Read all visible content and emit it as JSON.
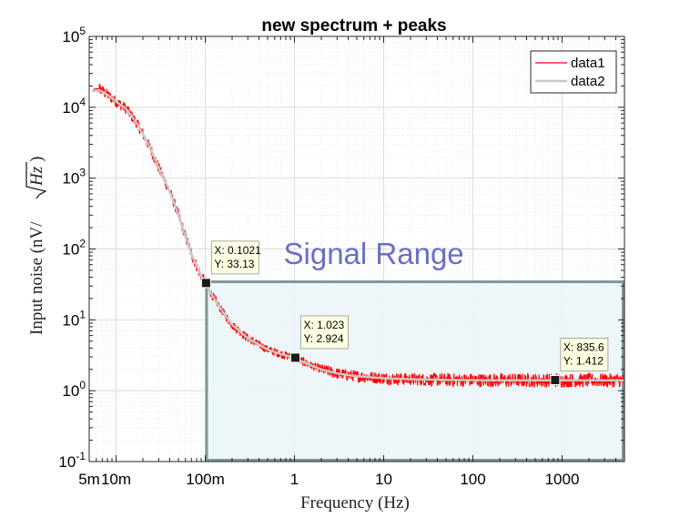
{
  "chart_data": {
    "type": "line",
    "title": "new spectrum + peaks",
    "xlabel": "Frequency (Hz)",
    "ylabel": "Input noise (nV/√Hz)",
    "ylabel_parts": {
      "prefix": "Input noise (nV/",
      "radicand": "Hz",
      "suffix": ")"
    },
    "xscale": "log",
    "yscale": "log",
    "xlim": [
      0.005,
      5000
    ],
    "ylim": [
      0.1,
      100000
    ],
    "grid": true,
    "legend_position": "top-right",
    "x_ticks": [
      {
        "value": 0.005,
        "label": "5m"
      },
      {
        "value": 0.01,
        "label": "10m"
      },
      {
        "value": 0.1,
        "label": "100m"
      },
      {
        "value": 1,
        "label": "1"
      },
      {
        "value": 10,
        "label": "10"
      },
      {
        "value": 100,
        "label": "100"
      },
      {
        "value": 1000,
        "label": "1000"
      }
    ],
    "y_ticks": [
      {
        "value": 0.1,
        "base": "10",
        "exp": "-1"
      },
      {
        "value": 1,
        "base": "10",
        "exp": "0"
      },
      {
        "value": 10,
        "base": "10",
        "exp": "1"
      },
      {
        "value": 100,
        "base": "10",
        "exp": "2"
      },
      {
        "value": 1000,
        "base": "10",
        "exp": "3"
      },
      {
        "value": 10000,
        "base": "10",
        "exp": "4"
      },
      {
        "value": 100000,
        "base": "10",
        "exp": "5"
      }
    ],
    "series": [
      {
        "name": "data1",
        "color": "#ff0000",
        "style": "noisy",
        "x": [
          0.0055,
          0.0065,
          0.008,
          0.01,
          0.013,
          0.017,
          0.02,
          0.025,
          0.03,
          0.04,
          0.05,
          0.06,
          0.07,
          0.085,
          0.1,
          0.12,
          0.15,
          0.2,
          0.3,
          0.5,
          0.7,
          1,
          1.5,
          2,
          3,
          5,
          10,
          20,
          50,
          100,
          200,
          500,
          1000,
          5000
        ],
        "y": [
          17000,
          18500,
          15000,
          12000,
          9500,
          6000,
          4200,
          2400,
          1400,
          650,
          300,
          150,
          85,
          48,
          33,
          22,
          14,
          8.5,
          5.5,
          3.8,
          3.3,
          2.9,
          2.3,
          2.0,
          1.75,
          1.6,
          1.5,
          1.45,
          1.42,
          1.41,
          1.4,
          1.4,
          1.4,
          1.4
        ]
      },
      {
        "name": "data2",
        "color": "#c8c8c8",
        "style": "smooth",
        "x": [
          0.0055,
          0.0065,
          0.008,
          0.01,
          0.013,
          0.017,
          0.02,
          0.025,
          0.03,
          0.04,
          0.05,
          0.06,
          0.07,
          0.085,
          0.1,
          0.12,
          0.15,
          0.2,
          0.3,
          0.5,
          0.7,
          1,
          1.5,
          2,
          3,
          5,
          10,
          20,
          50,
          100,
          200,
          500,
          1000,
          5000
        ],
        "y": [
          17000,
          17500,
          15000,
          12000,
          9500,
          6000,
          4200,
          2400,
          1400,
          650,
          300,
          150,
          85,
          48,
          33,
          22,
          14,
          8.5,
          5.5,
          3.8,
          3.3,
          2.9,
          2.3,
          2.0,
          1.75,
          1.6,
          1.5,
          1.45,
          1.42,
          1.41,
          1.4,
          1.4,
          1.4,
          1.4
        ]
      }
    ],
    "datatips": [
      {
        "x": 0.1021,
        "y": 33.13,
        "label_x": "X: 0.1021",
        "label_y": "Y: 33.13"
      },
      {
        "x": 1.023,
        "y": 2.924,
        "label_x": "X: 1.023",
        "label_y": "Y: 2.924"
      },
      {
        "x": 835.6,
        "y": 1.412,
        "label_x": "X: 835.6",
        "label_y": "Y: 1.412"
      }
    ],
    "annotations": [
      {
        "type": "rectangle",
        "x_range": [
          0.1,
          5000
        ],
        "y_range": [
          0.1,
          36
        ],
        "label": "Signal Range",
        "fill": "#eaf5f7",
        "edge": "#7f9998"
      }
    ]
  }
}
